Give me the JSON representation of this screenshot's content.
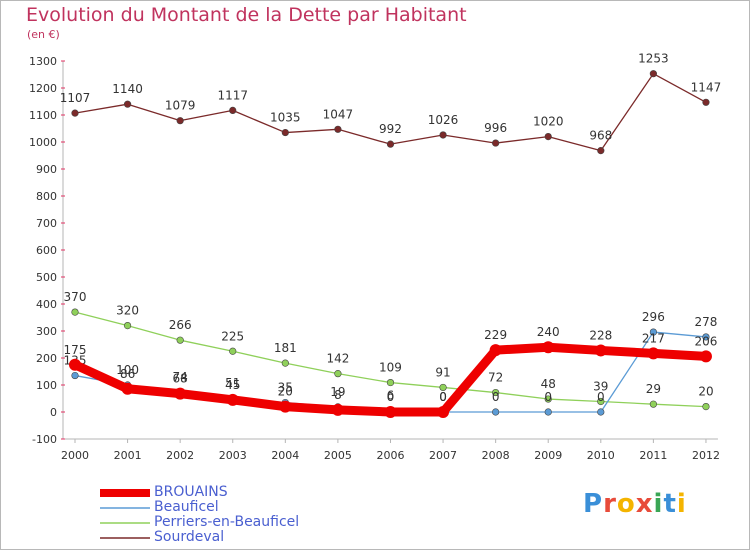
{
  "title": "Evolution du Montant de la Dette par Habitant",
  "subtitle": "(en €)",
  "logo_text": "Proxiti",
  "chart_data": {
    "type": "line",
    "title": "Evolution du Montant de la Dette par Habitant",
    "ylabel": "(en €)",
    "ylim": [
      -100,
      1300
    ],
    "ytick_step": 100,
    "grid": false,
    "legend_position": "bottom-left",
    "x": [
      "2000",
      "2001",
      "2002",
      "2003",
      "2004",
      "2005",
      "2006",
      "2007",
      "2008",
      "2009",
      "2010",
      "2011",
      "2012"
    ],
    "series": [
      {
        "name": "Sourdeval",
        "color": "#7b2a2a",
        "style": "thin",
        "values": [
          1107,
          1140,
          1079,
          1117,
          1035,
          1047,
          992,
          1026,
          996,
          1020,
          968,
          1253,
          1147
        ],
        "labels": [
          "1107",
          "1140",
          "1079",
          "1117",
          "1035",
          "1047",
          "992",
          "1026",
          "996",
          "1020",
          "968",
          "1253",
          "1147"
        ]
      },
      {
        "name": "Perriers-en-Beauficel",
        "color": "#8fd05a",
        "style": "thin",
        "values": [
          370,
          320,
          266,
          225,
          181,
          142,
          109,
          91,
          72,
          48,
          39,
          29,
          20
        ],
        "labels": [
          "370",
          "320",
          "266",
          "225",
          "181",
          "142",
          "109",
          "91",
          "72",
          "48",
          "39",
          "29",
          "20"
        ]
      },
      {
        "name": "Beauficel",
        "color": "#5b9bd5",
        "style": "thin",
        "values": [
          135,
          100,
          74,
          51,
          35,
          19,
          6,
          0,
          0,
          0,
          0,
          296,
          278
        ],
        "labels": [
          "135",
          "100",
          "74",
          "51",
          "35",
          "19",
          "6",
          "0",
          "0",
          "0",
          "0",
          "296",
          "278"
        ]
      },
      {
        "name": "BROUAINS",
        "color": "#ee0000",
        "style": "thick",
        "values": [
          175,
          86,
          68,
          45,
          20,
          8,
          0,
          0,
          229,
          240,
          228,
          217,
          206
        ],
        "labels": [
          "175",
          "86",
          "68",
          "45",
          "20",
          "8",
          "0",
          "0",
          "229",
          "240",
          "228",
          "217",
          "206"
        ]
      }
    ],
    "legend": [
      "BROUAINS",
      "Beauficel",
      "Perriers-en-Beauficel",
      "Sourdeval"
    ]
  }
}
